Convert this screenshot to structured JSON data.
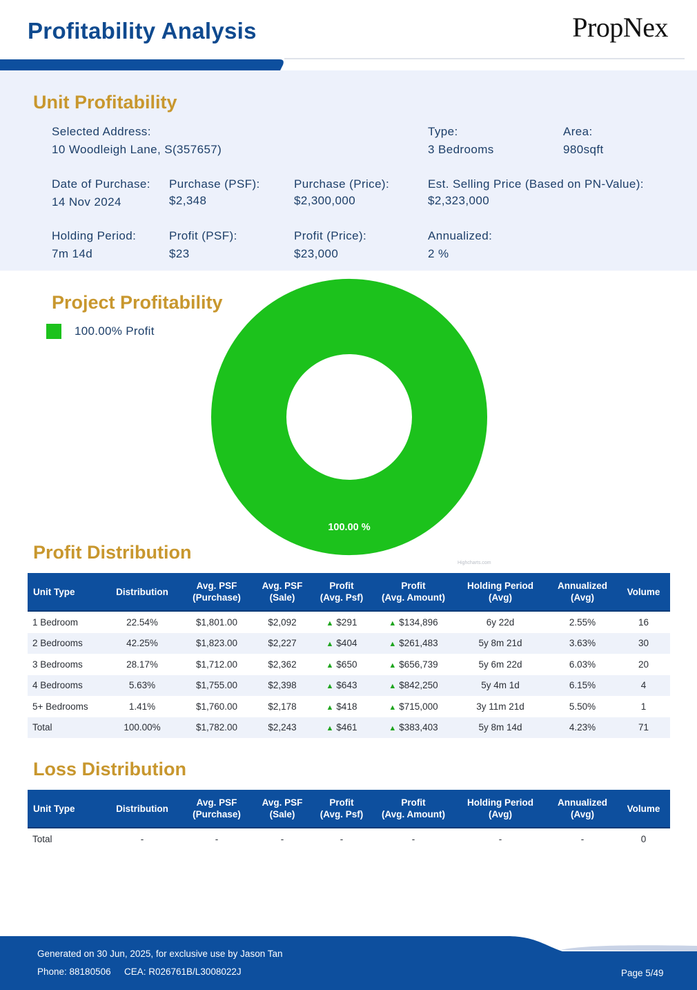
{
  "header": {
    "title": "Profitability Analysis",
    "logo": "PropNex"
  },
  "colors": {
    "brand_blue": "#0d4f9e",
    "section_gold": "#c8972e",
    "profit_green": "#1cc21c",
    "panel_bg": "#edf1fb"
  },
  "unit": {
    "title": "Unit Profitability",
    "fields": [
      {
        "label": "Selected Address:",
        "value": "10 Woodleigh Lane, S(357657)"
      },
      {
        "label": "Type:",
        "value": "3 Bedrooms"
      },
      {
        "label": "Area:",
        "value": "980sqft"
      },
      {
        "label": "Date of Purchase:",
        "value": "14 Nov 2024"
      },
      {
        "label": "Purchase (PSF):",
        "value": "$2,348"
      },
      {
        "label": "Purchase (Price):",
        "value": "$2,300,000"
      },
      {
        "label": "Est. Selling Price (Based on PN-Value):",
        "value": "$2,323,000"
      },
      {
        "label": "Holding Period:",
        "value": "7m 14d"
      },
      {
        "label": "Profit (PSF):",
        "value": "$23"
      },
      {
        "label": "Profit (Price):",
        "value": "$23,000"
      },
      {
        "label": "Annualized:",
        "value": "2 %"
      }
    ]
  },
  "project": {
    "title": "Project Profitability",
    "legend": "100.00% Profit",
    "slice_label": "100.00 %",
    "credits": "Highcharts.com"
  },
  "chart_data": {
    "type": "pie",
    "slices": [
      {
        "label": "Profit",
        "value": 100.0,
        "color": "#1cc21c"
      }
    ],
    "data_labels": [
      "100.00 %"
    ],
    "legend": [
      "100.00% Profit"
    ]
  },
  "profit_distribution": {
    "title": "Profit Distribution",
    "headers": [
      [
        "Unit Type"
      ],
      [
        "Distribution"
      ],
      [
        "Avg. PSF",
        "(Purchase)"
      ],
      [
        "Avg. PSF",
        "(Sale)"
      ],
      [
        "Profit",
        "(Avg. Psf)"
      ],
      [
        "Profit",
        "(Avg. Amount)"
      ],
      [
        "Holding Period",
        "(Avg)"
      ],
      [
        "Annualized",
        "(Avg)"
      ],
      [
        "Volume"
      ]
    ],
    "rows": [
      [
        "1 Bedroom",
        "22.54%",
        "$1,801.00",
        "$2,092",
        "$291",
        "$134,896",
        "6y 22d",
        "2.55%",
        "16"
      ],
      [
        "2 Bedrooms",
        "42.25%",
        "$1,823.00",
        "$2,227",
        "$404",
        "$261,483",
        "5y 8m 21d",
        "3.63%",
        "30"
      ],
      [
        "3 Bedrooms",
        "28.17%",
        "$1,712.00",
        "$2,362",
        "$650",
        "$656,739",
        "5y 6m 22d",
        "6.03%",
        "20"
      ],
      [
        "4 Bedrooms",
        "5.63%",
        "$1,755.00",
        "$2,398",
        "$643",
        "$842,250",
        "5y 4m 1d",
        "6.15%",
        "4"
      ],
      [
        "5+ Bedrooms",
        "1.41%",
        "$1,760.00",
        "$2,178",
        "$418",
        "$715,000",
        "3y 11m 21d",
        "5.50%",
        "1"
      ],
      [
        "Total",
        "100.00%",
        "$1,782.00",
        "$2,243",
        "$461",
        "$383,403",
        "5y 8m 14d",
        "4.23%",
        "71"
      ]
    ]
  },
  "loss_distribution": {
    "title": "Loss Distribution",
    "rows": [
      [
        "Total",
        "-",
        "-",
        "-",
        "-",
        "-",
        "-",
        "-",
        "0"
      ]
    ]
  },
  "footer": {
    "generated": "Generated on 30 Jun, 2025, for exclusive use by Jason Tan",
    "phone": "Phone: 88180506",
    "cea": "CEA: R026761B/L3008022J",
    "page": "Page 5/49"
  }
}
